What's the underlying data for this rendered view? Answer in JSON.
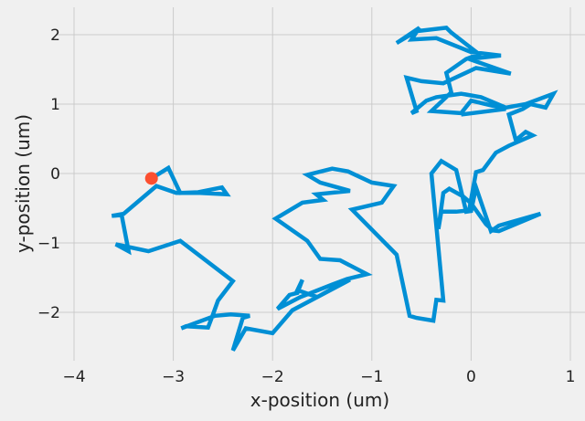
{
  "chart_data": {
    "type": "line",
    "title": "",
    "xlabel": "x-position (um)",
    "ylabel": "y-position (um)",
    "xlim": [
      -4.0,
      1.0
    ],
    "ylim": [
      -2.6,
      2.3
    ],
    "xticks": [
      -4,
      -3,
      -2,
      -1,
      0,
      1
    ],
    "xtick_labels": [
      "−4",
      "−3",
      "−2",
      "−1",
      "0",
      "1"
    ],
    "yticks": [
      -2,
      -1,
      0,
      1,
      2
    ],
    "ytick_labels": [
      "−2",
      "−1",
      "0",
      "1",
      "2"
    ],
    "grid": true,
    "series": [
      {
        "color": "#008fd5",
        "x": [
          -3.22,
          -3.05,
          -2.93,
          -2.75,
          -2.51,
          -2.46,
          -2.73,
          -2.97,
          -3.17,
          -3.5,
          -3.62,
          -3.52,
          -3.45,
          -3.58,
          -3.25,
          -2.93,
          -2.4,
          -2.55,
          -2.6,
          -2.65,
          -2.87,
          -2.92,
          -2.58,
          -2.42,
          -2.23,
          -2.3,
          -2.4,
          -2.27,
          -2.0,
          -1.8,
          -1.55,
          -1.35,
          -1.22,
          -1.55,
          -1.75,
          -1.7,
          -1.75,
          -1.83,
          -1.95,
          -1.72,
          -1.4,
          -1.25,
          -1.05,
          -1.32,
          -1.52,
          -1.65,
          -1.9,
          -1.97,
          -1.7,
          -1.49,
          -1.56,
          -1.22,
          -1.52,
          -1.65,
          -1.4,
          -1.24,
          -1.0,
          -0.78,
          -0.9,
          -1.2,
          -0.75,
          -0.62,
          -0.55,
          -0.38,
          -0.35,
          -0.28,
          -0.4,
          -0.3,
          -0.15,
          -0.05,
          0.0,
          0.05,
          0.2,
          0.28,
          0.7,
          0.28,
          0.22,
          0.15,
          0.0,
          -0.08,
          -0.22,
          -0.28,
          -0.33,
          -0.3,
          -0.15,
          -0.02,
          0.05,
          0.12,
          0.25,
          0.38,
          0.62,
          0.55,
          0.45,
          0.38,
          0.52,
          0.6,
          0.75,
          0.83,
          0.55,
          0.35,
          0.1,
          -0.1,
          -0.35,
          -0.45,
          -0.6,
          -0.55,
          -0.65,
          -0.5,
          -0.28,
          0.05,
          0.4,
          -0.02,
          0.3,
          0.0,
          -0.35,
          -0.6,
          -0.52,
          -0.75,
          -0.55,
          -0.25,
          -0.2,
          0.08,
          -0.05,
          -0.25,
          -0.2,
          -0.4,
          -0.1,
          0.0,
          0.35,
          -0.1,
          -0.1
        ],
        "y": [
          -0.07,
          0.08,
          -0.28,
          -0.27,
          -0.2,
          -0.3,
          -0.28,
          -0.28,
          -0.18,
          -0.58,
          -0.61,
          -0.6,
          -1.12,
          -1.02,
          -1.12,
          -0.97,
          -1.55,
          -1.83,
          -2.03,
          -2.22,
          -2.2,
          -2.23,
          -2.05,
          -2.03,
          -2.05,
          -2.08,
          -2.55,
          -2.23,
          -2.3,
          -1.97,
          -1.78,
          -1.62,
          -1.53,
          -1.78,
          -1.68,
          -1.53,
          -1.72,
          -1.75,
          -1.95,
          -1.78,
          -1.6,
          -1.52,
          -1.45,
          -1.25,
          -1.23,
          -0.97,
          -0.72,
          -0.65,
          -0.42,
          -0.38,
          -0.3,
          -0.25,
          -0.13,
          -0.02,
          0.07,
          0.03,
          -0.13,
          -0.18,
          -0.42,
          -0.52,
          -1.17,
          -2.05,
          -2.08,
          -2.12,
          -1.82,
          -1.83,
          0.0,
          0.18,
          0.05,
          -0.55,
          -0.54,
          -0.2,
          -0.83,
          -0.75,
          -0.58,
          -0.83,
          -0.82,
          -0.73,
          -0.43,
          -0.33,
          -0.22,
          -0.28,
          -0.8,
          -0.55,
          -0.55,
          -0.53,
          0.02,
          0.05,
          0.3,
          0.4,
          0.55,
          0.6,
          0.48,
          0.85,
          0.93,
          1.0,
          0.95,
          1.15,
          1.0,
          0.95,
          1.1,
          1.15,
          1.1,
          1.05,
          0.87,
          0.9,
          1.38,
          1.33,
          1.3,
          1.52,
          1.44,
          1.65,
          1.7,
          1.75,
          1.95,
          1.93,
          2.1,
          1.88,
          2.05,
          2.1,
          2.03,
          1.72,
          1.65,
          1.45,
          1.17,
          0.9,
          0.87,
          1.05,
          0.93,
          0.85,
          0.85
        ]
      }
    ],
    "start_marker": {
      "x": -3.22,
      "y": -0.07,
      "color": "#fc4f30"
    }
  }
}
